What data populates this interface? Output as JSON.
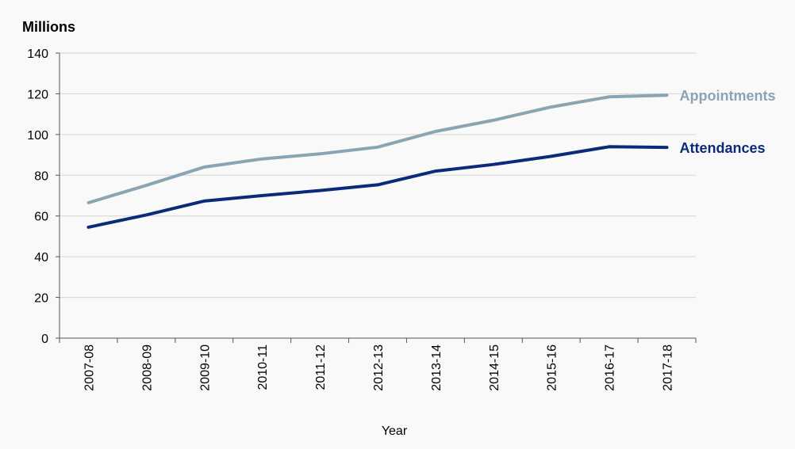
{
  "chart_data": {
    "type": "line",
    "unit_label": "Millions",
    "xlabel": "Year",
    "ylabel": "",
    "ylim": [
      0,
      140
    ],
    "yticks": [
      0,
      20,
      40,
      60,
      80,
      100,
      120,
      140
    ],
    "grid": "horizontal",
    "legend": "direct labels at right end of lines",
    "categories": [
      "2007-08",
      "2008-09",
      "2009-10",
      "2010-11",
      "2011-12",
      "2012-13",
      "2013-14",
      "2014-15",
      "2015-16",
      "2016-17",
      "2017-18"
    ],
    "series": [
      {
        "name": "Appointments",
        "color": "#8aa4b3",
        "values": [
          66.5,
          75,
          84,
          88,
          90.5,
          93.8,
          101.5,
          107,
          113.5,
          118.5,
          119.3
        ]
      },
      {
        "name": "Attendances",
        "color": "#0b2a7a",
        "values": [
          54.5,
          60.5,
          67.3,
          70,
          72.5,
          75.3,
          82,
          85.3,
          89.3,
          94,
          93.7
        ]
      }
    ]
  }
}
